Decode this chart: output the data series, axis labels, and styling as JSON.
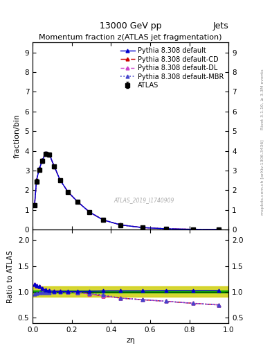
{
  "title_top": "13000 GeV pp",
  "title_right": "Jets",
  "plot_title": "Momentum fraction z(ATLAS jet fragmentation)",
  "xlabel": "zη",
  "ylabel_main": "fraction/bin",
  "ylabel_ratio": "Ratio to ATLAS",
  "watermark": "ATLAS_2019_I1740909",
  "right_label_top": "Rivet 3.1.10, ≥ 3.3M events",
  "right_label_bottom": "mcplots.cern.ch [arXiv:1306.3436]",
  "xlim": [
    0,
    1
  ],
  "ylim_main": [
    0,
    9.5
  ],
  "ylim_ratio": [
    0.4,
    2.2
  ],
  "yticks_main": [
    0,
    1,
    2,
    3,
    4,
    5,
    6,
    7,
    8,
    9
  ],
  "yticks_ratio": [
    0.5,
    1.0,
    1.5,
    2.0
  ],
  "data_x": [
    0.01,
    0.02,
    0.035,
    0.05,
    0.065,
    0.085,
    0.11,
    0.14,
    0.18,
    0.23,
    0.29,
    0.36,
    0.45,
    0.56,
    0.68,
    0.82,
    0.95
  ],
  "data_y": [
    1.25,
    2.45,
    3.05,
    3.5,
    3.85,
    3.8,
    3.2,
    2.5,
    1.9,
    1.4,
    0.88,
    0.48,
    0.23,
    0.1,
    0.04,
    0.01,
    0.005
  ],
  "data_yerr": [
    0.08,
    0.12,
    0.1,
    0.1,
    0.1,
    0.1,
    0.08,
    0.08,
    0.06,
    0.06,
    0.04,
    0.03,
    0.02,
    0.01,
    0.005,
    0.003,
    0.002
  ],
  "pythia_x": [
    0.01,
    0.02,
    0.035,
    0.05,
    0.065,
    0.085,
    0.11,
    0.14,
    0.18,
    0.23,
    0.29,
    0.36,
    0.45,
    0.56,
    0.68,
    0.82,
    0.95
  ],
  "pythia_default_y": [
    1.28,
    2.52,
    3.12,
    3.52,
    3.88,
    3.82,
    3.22,
    2.52,
    1.92,
    1.41,
    0.89,
    0.49,
    0.235,
    0.102,
    0.041,
    0.011,
    0.0055
  ],
  "pythia_cd_y": [
    1.28,
    2.52,
    3.12,
    3.52,
    3.88,
    3.82,
    3.22,
    2.52,
    1.92,
    1.41,
    0.89,
    0.49,
    0.235,
    0.102,
    0.041,
    0.011,
    0.0055
  ],
  "pythia_dl_y": [
    1.28,
    2.52,
    3.12,
    3.52,
    3.88,
    3.82,
    3.22,
    2.52,
    1.92,
    1.41,
    0.89,
    0.49,
    0.235,
    0.102,
    0.041,
    0.011,
    0.0055
  ],
  "pythia_mbr_y": [
    1.28,
    2.52,
    3.12,
    3.52,
    3.88,
    3.82,
    3.22,
    2.52,
    1.92,
    1.41,
    0.89,
    0.49,
    0.235,
    0.102,
    0.041,
    0.011,
    0.0055
  ],
  "ratio_default_y": [
    1.15,
    1.12,
    1.1,
    1.06,
    1.04,
    1.02,
    1.01,
    1.01,
    1.01,
    1.01,
    1.01,
    1.02,
    1.02,
    1.02,
    1.025,
    1.025,
    1.025
  ],
  "ratio_cd_y": [
    1.15,
    1.12,
    1.1,
    1.06,
    1.04,
    1.02,
    1.01,
    1.01,
    1.0,
    0.99,
    0.96,
    0.92,
    0.88,
    0.85,
    0.82,
    0.78,
    0.75
  ],
  "ratio_dl_y": [
    1.15,
    1.12,
    1.1,
    1.06,
    1.04,
    1.02,
    1.01,
    1.01,
    1.0,
    0.99,
    0.96,
    0.92,
    0.88,
    0.85,
    0.82,
    0.78,
    0.75
  ],
  "ratio_mbr_y": [
    0.96,
    0.97,
    0.98,
    0.99,
    0.99,
    0.99,
    1.0,
    1.0,
    1.0,
    0.99,
    0.97,
    0.94,
    0.88,
    0.85,
    0.82,
    0.78,
    0.75
  ],
  "band_yellow_upper": 1.1,
  "band_yellow_lower": 0.9,
  "band_green_upper": 1.02,
  "band_green_lower": 0.98,
  "color_data": "#000000",
  "color_default": "#0000cc",
  "color_cd": "#cc0000",
  "color_dl": "#cc0000",
  "color_mbr": "#4444cc",
  "color_band_yellow": "#cccc00",
  "color_band_green": "#00aa00",
  "marker_size": 3.5,
  "legend_fontsize": 7,
  "axis_fontsize": 8,
  "title_fontsize": 8
}
